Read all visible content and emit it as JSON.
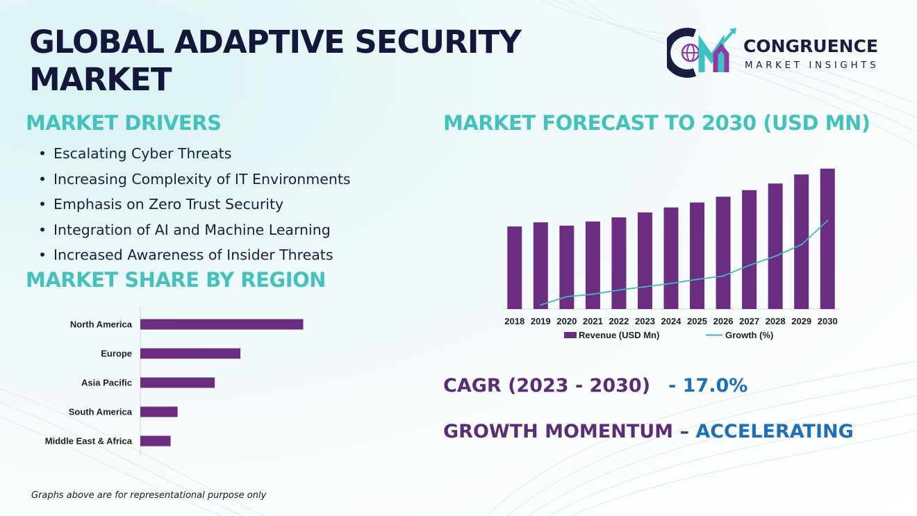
{
  "header": {
    "title_line1": "GLOBAL ADAPTIVE SECURITY",
    "title_line2": "MARKET"
  },
  "logo": {
    "name": "CONGRUENCE",
    "tagline": "MARKET INSIGHTS",
    "icon": "cm-globe-logo-icon",
    "colors": {
      "dark": "#1a1d3f",
      "purple": "#8e3aa4",
      "teal": "#3cc1c4"
    }
  },
  "drivers": {
    "title": "MARKET DRIVERS",
    "items": [
      "Escalating Cyber Threats",
      "Increasing Complexity of IT Environments",
      "Emphasis on Zero Trust Security",
      "Integration of AI and Machine Learning",
      "Increased Awareness of Insider Threats"
    ]
  },
  "region": {
    "title": "MARKET SHARE BY REGION"
  },
  "forecast": {
    "title": "MARKET FORECAST TO 2030 (USD MN)"
  },
  "cagr": {
    "label": "CAGR (2023 - 2030)",
    "value": "- 17.0%"
  },
  "momentum": {
    "label": "GROWTH MOMENTUM – ",
    "value": "ACCELERATING"
  },
  "footnote": "Graphs above are for representational purpose only",
  "colors": {
    "accent": "#43c2bd",
    "bar": "#6a2d80",
    "line": "#3fb7c6",
    "heading": "#14173a"
  },
  "chart_data": [
    {
      "type": "bar",
      "orientation": "horizontal",
      "categories": [
        "North America",
        "Europe",
        "Asia Pacific",
        "South America",
        "Middle East & Africa"
      ],
      "values": [
        35,
        21.5,
        16,
        8,
        6.5
      ],
      "title": "",
      "xlabel": "",
      "ylabel": "",
      "xlim": [
        0,
        40
      ],
      "grid": false,
      "color": "#6a2d80"
    },
    {
      "type": "bar",
      "categories": [
        "2018",
        "2019",
        "2020",
        "2021",
        "2022",
        "2023",
        "2024",
        "2025",
        "2026",
        "2027",
        "2028",
        "2029",
        "2030"
      ],
      "series": [
        {
          "name": "Revenue (USD Mn)",
          "type": "bar",
          "color": "#6a2d80",
          "values": [
            100,
            105,
            101,
            106,
            111,
            117,
            123,
            129,
            136,
            144,
            152,
            163,
            170
          ]
        },
        {
          "name": "Growth (%)",
          "type": "line",
          "color": "#3fb7c6",
          "values": [
            null,
            5,
            15,
            18,
            23,
            27,
            31,
            36,
            40,
            53,
            64,
            78,
            107
          ]
        }
      ],
      "title": "",
      "xlabel": "",
      "ylabel": "",
      "ylim": [
        0,
        185
      ],
      "grid": false,
      "legend": "bottom"
    }
  ]
}
